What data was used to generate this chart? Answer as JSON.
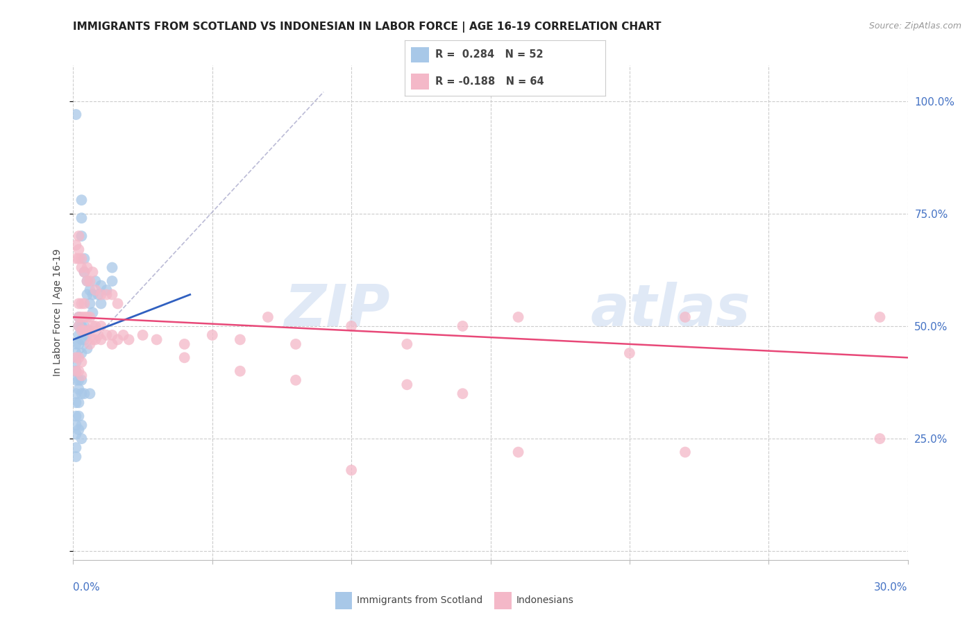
{
  "title": "IMMIGRANTS FROM SCOTLAND VS INDONESIAN IN LABOR FORCE | AGE 16-19 CORRELATION CHART",
  "source": "Source: ZipAtlas.com",
  "ylabel": "In Labor Force | Age 16-19",
  "ylabel_right_ticks": [
    "100.0%",
    "75.0%",
    "50.0%",
    "25.0%"
  ],
  "ylabel_right_vals": [
    1.0,
    0.75,
    0.5,
    0.25
  ],
  "xlim": [
    0.0,
    0.3
  ],
  "ylim": [
    -0.02,
    1.08
  ],
  "scotland_color": "#a8c8e8",
  "indonesian_color": "#f4b8c8",
  "scotland_line_color": "#3060c0",
  "indonesian_line_color": "#e84878",
  "watermark_zip": "ZIP",
  "watermark_atlas": "atlas",
  "scotland_points": [
    [
      0.001,
      0.97
    ],
    [
      0.003,
      0.78
    ],
    [
      0.003,
      0.74
    ],
    [
      0.003,
      0.7
    ],
    [
      0.004,
      0.65
    ],
    [
      0.004,
      0.62
    ],
    [
      0.005,
      0.6
    ],
    [
      0.005,
      0.57
    ],
    [
      0.006,
      0.58
    ],
    [
      0.006,
      0.55
    ],
    [
      0.007,
      0.57
    ],
    [
      0.007,
      0.53
    ],
    [
      0.008,
      0.6
    ],
    [
      0.009,
      0.57
    ],
    [
      0.01,
      0.59
    ],
    [
      0.01,
      0.55
    ],
    [
      0.012,
      0.58
    ],
    [
      0.014,
      0.63
    ],
    [
      0.014,
      0.6
    ],
    [
      0.002,
      0.52
    ],
    [
      0.002,
      0.5
    ],
    [
      0.002,
      0.48
    ],
    [
      0.002,
      0.46
    ],
    [
      0.003,
      0.5
    ],
    [
      0.003,
      0.47
    ],
    [
      0.003,
      0.44
    ],
    [
      0.004,
      0.5
    ],
    [
      0.004,
      0.47
    ],
    [
      0.005,
      0.48
    ],
    [
      0.005,
      0.45
    ],
    [
      0.001,
      0.46
    ],
    [
      0.001,
      0.44
    ],
    [
      0.001,
      0.42
    ],
    [
      0.001,
      0.4
    ],
    [
      0.001,
      0.38
    ],
    [
      0.001,
      0.35
    ],
    [
      0.001,
      0.33
    ],
    [
      0.001,
      0.3
    ],
    [
      0.001,
      0.28
    ],
    [
      0.001,
      0.26
    ],
    [
      0.001,
      0.23
    ],
    [
      0.001,
      0.21
    ],
    [
      0.002,
      0.38
    ],
    [
      0.002,
      0.36
    ],
    [
      0.002,
      0.33
    ],
    [
      0.003,
      0.38
    ],
    [
      0.003,
      0.35
    ],
    [
      0.004,
      0.35
    ],
    [
      0.006,
      0.35
    ],
    [
      0.002,
      0.3
    ],
    [
      0.002,
      0.27
    ],
    [
      0.003,
      0.28
    ],
    [
      0.003,
      0.25
    ]
  ],
  "indonesian_points": [
    [
      0.001,
      0.68
    ],
    [
      0.001,
      0.65
    ],
    [
      0.002,
      0.7
    ],
    [
      0.002,
      0.67
    ],
    [
      0.002,
      0.65
    ],
    [
      0.003,
      0.65
    ],
    [
      0.003,
      0.63
    ],
    [
      0.004,
      0.62
    ],
    [
      0.005,
      0.63
    ],
    [
      0.005,
      0.6
    ],
    [
      0.006,
      0.6
    ],
    [
      0.007,
      0.62
    ],
    [
      0.008,
      0.58
    ],
    [
      0.01,
      0.57
    ],
    [
      0.012,
      0.57
    ],
    [
      0.014,
      0.57
    ],
    [
      0.016,
      0.55
    ],
    [
      0.002,
      0.55
    ],
    [
      0.002,
      0.52
    ],
    [
      0.002,
      0.5
    ],
    [
      0.003,
      0.55
    ],
    [
      0.003,
      0.52
    ],
    [
      0.003,
      0.49
    ],
    [
      0.004,
      0.55
    ],
    [
      0.004,
      0.52
    ],
    [
      0.004,
      0.49
    ],
    [
      0.005,
      0.52
    ],
    [
      0.005,
      0.49
    ],
    [
      0.006,
      0.52
    ],
    [
      0.006,
      0.49
    ],
    [
      0.006,
      0.46
    ],
    [
      0.007,
      0.5
    ],
    [
      0.007,
      0.47
    ],
    [
      0.008,
      0.5
    ],
    [
      0.008,
      0.47
    ],
    [
      0.009,
      0.48
    ],
    [
      0.01,
      0.5
    ],
    [
      0.01,
      0.47
    ],
    [
      0.012,
      0.48
    ],
    [
      0.014,
      0.48
    ],
    [
      0.014,
      0.46
    ],
    [
      0.016,
      0.47
    ],
    [
      0.018,
      0.48
    ],
    [
      0.02,
      0.47
    ],
    [
      0.025,
      0.48
    ],
    [
      0.03,
      0.47
    ],
    [
      0.04,
      0.46
    ],
    [
      0.04,
      0.43
    ],
    [
      0.05,
      0.48
    ],
    [
      0.06,
      0.47
    ],
    [
      0.07,
      0.52
    ],
    [
      0.08,
      0.46
    ],
    [
      0.1,
      0.5
    ],
    [
      0.12,
      0.46
    ],
    [
      0.14,
      0.5
    ],
    [
      0.16,
      0.52
    ],
    [
      0.2,
      0.44
    ],
    [
      0.22,
      0.52
    ],
    [
      0.29,
      0.52
    ],
    [
      0.001,
      0.43
    ],
    [
      0.001,
      0.4
    ],
    [
      0.002,
      0.43
    ],
    [
      0.002,
      0.4
    ],
    [
      0.003,
      0.42
    ],
    [
      0.003,
      0.39
    ],
    [
      0.06,
      0.4
    ],
    [
      0.08,
      0.38
    ],
    [
      0.12,
      0.37
    ],
    [
      0.14,
      0.35
    ],
    [
      0.29,
      0.25
    ],
    [
      0.16,
      0.22
    ],
    [
      0.1,
      0.18
    ],
    [
      0.22,
      0.22
    ]
  ],
  "ref_line": [
    [
      0.0,
      0.42
    ],
    [
      0.085,
      1.0
    ]
  ],
  "scotland_trend": [
    0.0,
    0.042,
    0.47,
    0.57
  ],
  "indonesian_trend": [
    0.0,
    0.3,
    0.52,
    0.44
  ]
}
